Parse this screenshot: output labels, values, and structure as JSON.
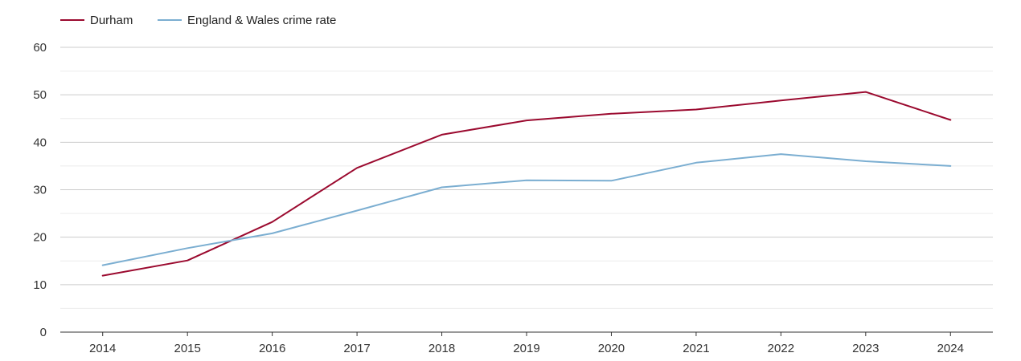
{
  "chart_data": {
    "type": "line",
    "title": "",
    "xlabel": "",
    "ylabel": "",
    "x": [
      "2014",
      "2015",
      "2016",
      "2017",
      "2018",
      "2019",
      "2020",
      "2021",
      "2022",
      "2023",
      "2024"
    ],
    "ylim": [
      0,
      60
    ],
    "y_ticks": [
      "0",
      "10",
      "20",
      "30",
      "40",
      "50",
      "60"
    ],
    "grid": true,
    "legend_position": "top-left",
    "series": [
      {
        "name": "Durham",
        "color": "#9b0a2f",
        "values": [
          11.9,
          15.1,
          23.2,
          34.6,
          41.6,
          44.6,
          46.0,
          46.9,
          48.8,
          50.6,
          44.7
        ]
      },
      {
        "name": "England & Wales crime rate",
        "color": "#7baed1",
        "values": [
          14.1,
          17.7,
          20.8,
          25.6,
          30.5,
          32.0,
          31.9,
          35.7,
          37.5,
          36.0,
          35.0
        ]
      }
    ]
  }
}
